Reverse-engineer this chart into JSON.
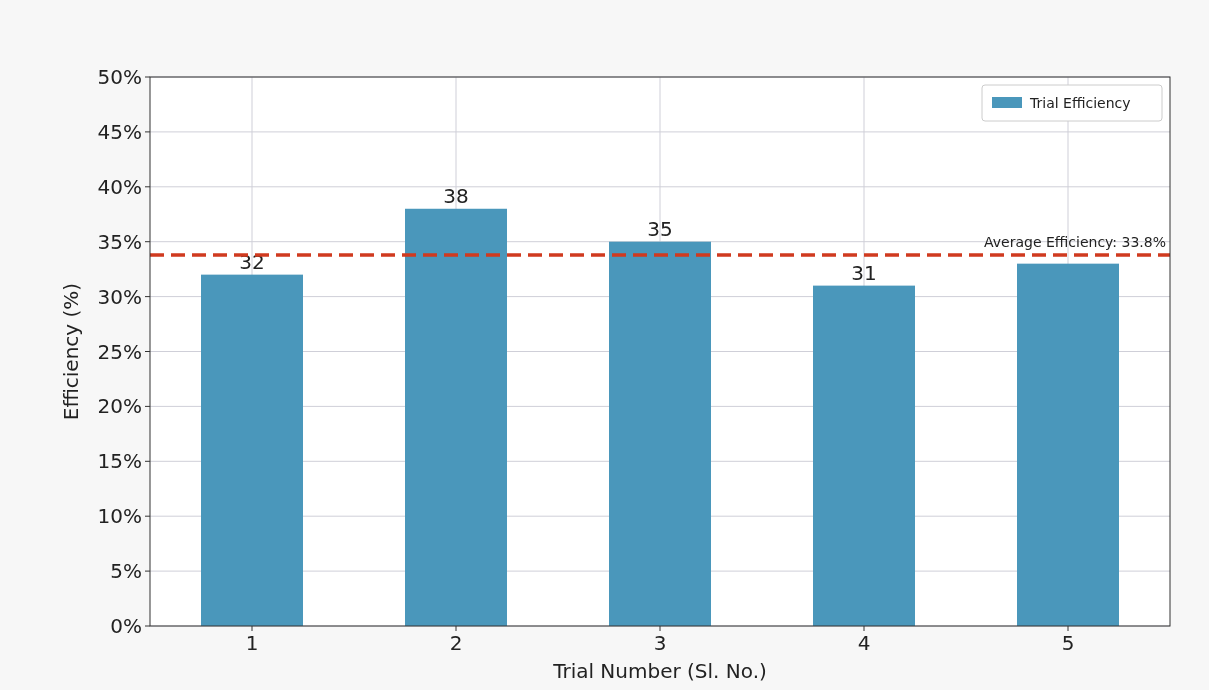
{
  "chart_data": {
    "type": "bar",
    "xlabel": "Trial Number (Sl. No.)",
    "ylabel": "Efficiency (%)",
    "categories": [
      "1",
      "2",
      "3",
      "4",
      "5"
    ],
    "series": [
      {
        "name": "Trial Efficiency",
        "color": "#4a97bb",
        "values": [
          32,
          38,
          35,
          31,
          33
        ],
        "value_labels": [
          "32",
          "38",
          "35",
          "31",
          null
        ]
      }
    ],
    "ylim": [
      0,
      50
    ],
    "yticks": [
      {
        "value": 0,
        "label": "0%"
      },
      {
        "value": 5,
        "label": "5%"
      },
      {
        "value": 10,
        "label": "10%"
      },
      {
        "value": 15,
        "label": "15%"
      },
      {
        "value": 20,
        "label": "20%"
      },
      {
        "value": 25,
        "label": "25%"
      },
      {
        "value": 30,
        "label": "30%"
      },
      {
        "value": 35,
        "label": "35%"
      },
      {
        "value": 40,
        "label": "40%"
      },
      {
        "value": 45,
        "label": "45%"
      },
      {
        "value": 50,
        "label": "50%"
      }
    ],
    "ref_lines": [
      {
        "axis": "y",
        "value": 33.8,
        "label": "Average Efficiency: 33.8%",
        "color": "#d03a1f",
        "line_style": "dashed"
      }
    ],
    "grid": true,
    "legend": "top right"
  }
}
